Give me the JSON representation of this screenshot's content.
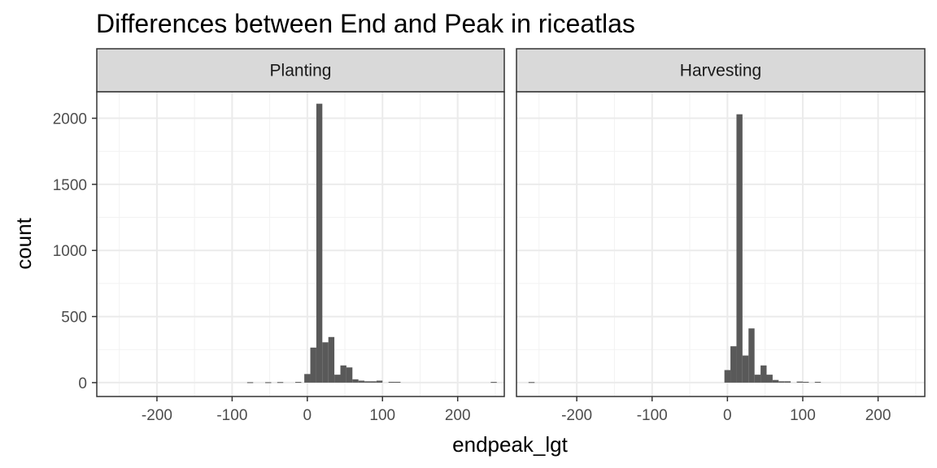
{
  "chart_data": {
    "type": "bar",
    "title": "Differences between End and Peak in riceatlas",
    "xlabel": "endpeak_lgt",
    "ylabel": "count",
    "xlim": [
      -280,
      262
    ],
    "ylim": [
      -105,
      2200
    ],
    "x_ticks": [
      -200,
      -100,
      0,
      100,
      200
    ],
    "x_tick_labels": [
      "-200",
      "-100",
      "0",
      "100",
      "200"
    ],
    "y_ticks": [
      0,
      500,
      1000,
      1500,
      2000
    ],
    "y_tick_labels": [
      "0",
      "500",
      "1000",
      "1500",
      "2000"
    ],
    "grid": true,
    "bin_width": 8,
    "bar_color": "#595959",
    "panels": [
      {
        "name": "Planting",
        "bins": [
          {
            "x": -76,
            "count": 3
          },
          {
            "x": -52,
            "count": 3
          },
          {
            "x": -36,
            "count": 4
          },
          {
            "x": -12,
            "count": 5
          },
          {
            "x": 0,
            "count": 65
          },
          {
            "x": 8,
            "count": 265
          },
          {
            "x": 16,
            "count": 2110
          },
          {
            "x": 24,
            "count": 305
          },
          {
            "x": 32,
            "count": 345
          },
          {
            "x": 40,
            "count": 60
          },
          {
            "x": 48,
            "count": 130
          },
          {
            "x": 56,
            "count": 115
          },
          {
            "x": 64,
            "count": 25
          },
          {
            "x": 72,
            "count": 15
          },
          {
            "x": 80,
            "count": 10
          },
          {
            "x": 88,
            "count": 10
          },
          {
            "x": 96,
            "count": 15
          },
          {
            "x": 112,
            "count": 6
          },
          {
            "x": 120,
            "count": 6
          },
          {
            "x": 248,
            "count": 5
          }
        ]
      },
      {
        "name": "Harvesting",
        "bins": [
          {
            "x": -260,
            "count": 4
          },
          {
            "x": 0,
            "count": 95
          },
          {
            "x": 8,
            "count": 275
          },
          {
            "x": 16,
            "count": 2030
          },
          {
            "x": 24,
            "count": 205
          },
          {
            "x": 32,
            "count": 410
          },
          {
            "x": 40,
            "count": 60
          },
          {
            "x": 48,
            "count": 130
          },
          {
            "x": 56,
            "count": 60
          },
          {
            "x": 64,
            "count": 20
          },
          {
            "x": 72,
            "count": 10
          },
          {
            "x": 80,
            "count": 10
          },
          {
            "x": 96,
            "count": 8
          },
          {
            "x": 104,
            "count": 6
          },
          {
            "x": 120,
            "count": 6
          }
        ]
      }
    ]
  }
}
